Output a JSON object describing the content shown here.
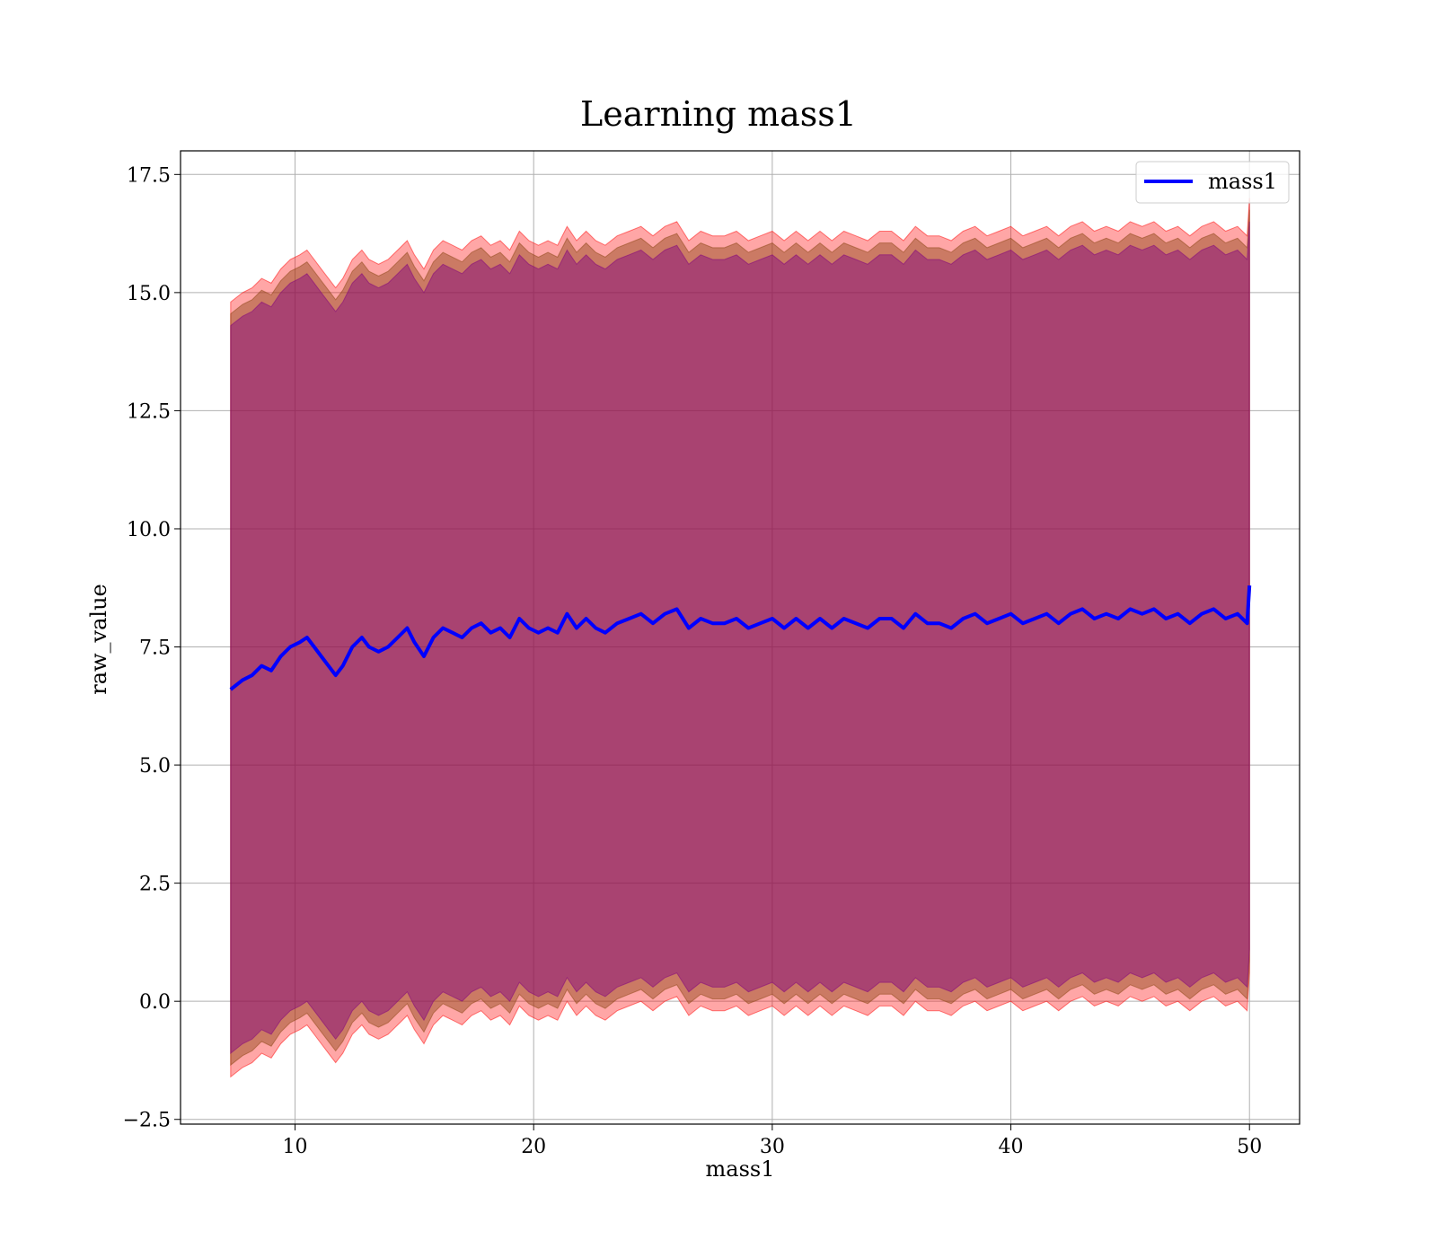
{
  "chart_data": {
    "type": "line",
    "title": "Learning mass1",
    "xlabel": "mass1",
    "ylabel": "raw_value",
    "xlim": [
      5.2,
      52.1
    ],
    "ylim": [
      -2.6,
      18.0
    ],
    "x_ticks": [
      10,
      20,
      30,
      40,
      50
    ],
    "x_tick_labels": [
      "10",
      "20",
      "30",
      "40",
      "50"
    ],
    "y_ticks": [
      -2.5,
      0.0,
      2.5,
      5.0,
      7.5,
      10.0,
      12.5,
      15.0,
      17.5
    ],
    "y_tick_labels": [
      "−2.5",
      "0.0",
      "2.5",
      "5.0",
      "7.5",
      "10.0",
      "12.5",
      "15.0",
      "17.5"
    ],
    "grid": true,
    "legend": {
      "placement": "top-right",
      "entries": [
        "mass1"
      ]
    },
    "colors": {
      "mean_line": "#0000ff",
      "band_outer": "#ff0000",
      "band_middle": "#8b4513",
      "band_inner": "#800080",
      "frame": "#000000",
      "grid": "#b0b0b0"
    },
    "series": [
      {
        "name": "mass1",
        "x": [
          7.3,
          7.8,
          8.2,
          8.6,
          9.0,
          9.4,
          9.8,
          10.2,
          10.5,
          10.8,
          11.1,
          11.4,
          11.7,
          12.0,
          12.4,
          12.8,
          13.1,
          13.5,
          13.9,
          14.3,
          14.7,
          15.0,
          15.4,
          15.8,
          16.2,
          16.6,
          17.0,
          17.4,
          17.8,
          18.2,
          18.6,
          19.0,
          19.4,
          19.8,
          20.2,
          20.6,
          21.0,
          21.4,
          21.8,
          22.2,
          22.6,
          23.0,
          23.5,
          24.0,
          24.5,
          25.0,
          25.5,
          26.0,
          26.5,
          27.0,
          27.5,
          28.0,
          28.5,
          29.0,
          29.5,
          30.0,
          30.5,
          31.0,
          31.5,
          32.0,
          32.5,
          33.0,
          33.5,
          34.0,
          34.5,
          35.0,
          35.5,
          36.0,
          36.5,
          37.0,
          37.5,
          38.0,
          38.5,
          39.0,
          39.5,
          40.0,
          40.5,
          41.0,
          41.5,
          42.0,
          42.5,
          43.0,
          43.5,
          44.0,
          44.5,
          45.0,
          45.5,
          46.0,
          46.5,
          47.0,
          47.5,
          48.0,
          48.5,
          49.0,
          49.5,
          49.9,
          50.0
        ],
        "mean": [
          6.6,
          6.8,
          6.9,
          7.1,
          7.0,
          7.3,
          7.5,
          7.6,
          7.7,
          7.5,
          7.3,
          7.1,
          6.9,
          7.1,
          7.5,
          7.7,
          7.5,
          7.4,
          7.5,
          7.7,
          7.9,
          7.6,
          7.3,
          7.7,
          7.9,
          7.8,
          7.7,
          7.9,
          8.0,
          7.8,
          7.9,
          7.7,
          8.1,
          7.9,
          7.8,
          7.9,
          7.8,
          8.2,
          7.9,
          8.1,
          7.9,
          7.8,
          8.0,
          8.1,
          8.2,
          8.0,
          8.2,
          8.3,
          7.9,
          8.1,
          8.0,
          8.0,
          8.1,
          7.9,
          8.0,
          8.1,
          7.9,
          8.1,
          7.9,
          8.1,
          7.9,
          8.1,
          8.0,
          7.9,
          8.1,
          8.1,
          7.9,
          8.2,
          8.0,
          8.0,
          7.9,
          8.1,
          8.2,
          8.0,
          8.1,
          8.2,
          8.0,
          8.1,
          8.2,
          8.0,
          8.2,
          8.3,
          8.1,
          8.2,
          8.1,
          8.3,
          8.2,
          8.3,
          8.1,
          8.2,
          8.0,
          8.2,
          8.3,
          8.1,
          8.2,
          8.0,
          8.8
        ],
        "band_outer_half_width": 8.2,
        "band_middle_half_width": 7.95,
        "band_inner_half_width": 7.7
      }
    ]
  }
}
